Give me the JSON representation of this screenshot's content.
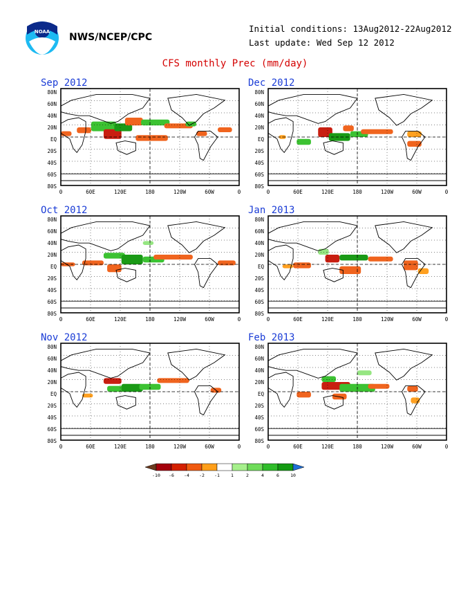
{
  "header": {
    "agency": "NWS/NCEP/CPC",
    "initial_conditions": "Initial conditions: 13Aug2012-22Aug2012",
    "last_update": "Last update: Wed Sep 12 2012",
    "title": "CFS monthly Prec (mm/day)",
    "logo_text": "NOAA"
  },
  "axes": {
    "lat_labels": [
      "80N",
      "60N",
      "40N",
      "20N",
      "EQ",
      "20S",
      "40S",
      "60S",
      "80S"
    ],
    "lon_labels": [
      "0",
      "60E",
      "120E",
      "180",
      "120W",
      "60W",
      "0"
    ]
  },
  "panels": [
    {
      "title": "Sep 2012"
    },
    {
      "title": "Dec 2012"
    },
    {
      "title": "Oct 2012"
    },
    {
      "title": "Jan 2013"
    },
    {
      "title": "Nov 2012"
    },
    {
      "title": "Feb 2013"
    }
  ],
  "legend": {
    "ticks": [
      "-10",
      "-6",
      "-4",
      "-2",
      "-1",
      "1",
      "2",
      "4",
      "6",
      "10"
    ],
    "colors": [
      "#6b3a1e",
      "#a4000c",
      "#d42000",
      "#f05a10",
      "#ff9f1a",
      "#ffffff",
      "#a6f08c",
      "#6fdc5a",
      "#2fbd2a",
      "#139a12",
      "#1f6fd6"
    ]
  },
  "colors": {
    "dry_strong": "#c81e10",
    "dry": "#f0641e",
    "dry_weak": "#ffa020",
    "wet_weak": "#96e682",
    "wet": "#3cc232",
    "wet_strong": "#1a9a16",
    "title": "#d40000",
    "panel_title": "#1a3cd6"
  }
}
